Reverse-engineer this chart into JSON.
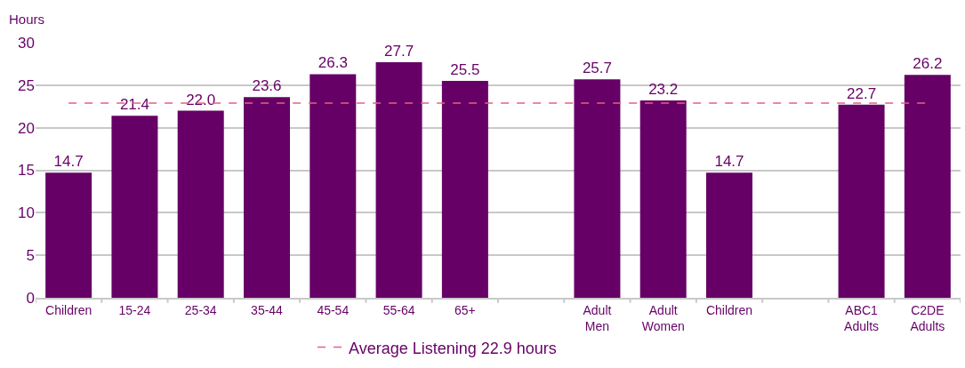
{
  "chart_data": {
    "type": "bar",
    "ylabel": "Hours",
    "categories": [
      "Children",
      "15-24",
      "25-34",
      "35-44",
      "45-54",
      "55-64",
      "65+",
      null,
      "Adult Men",
      "Adult Women",
      "Children",
      null,
      "ABC1 Adults",
      "C2DE Adults"
    ],
    "values": [
      14.7,
      21.4,
      22.0,
      23.6,
      26.3,
      27.7,
      25.5,
      null,
      25.7,
      23.2,
      14.7,
      null,
      22.7,
      26.2
    ],
    "value_labels": [
      "14.7",
      "21.4",
      "22.0",
      "23.6",
      "26.3",
      "27.7",
      "25.5",
      null,
      "25.7",
      "23.2",
      "14.7",
      null,
      "22.7",
      "26.2"
    ],
    "color": "#660066",
    "ylim": [
      0,
      30
    ],
    "yticks": [
      0,
      5,
      10,
      15,
      20,
      25,
      30
    ],
    "grid": "y",
    "legend": "bottom",
    "ref_lines": [
      {
        "axis": "y",
        "value": 22.9,
        "label": "Average Listening 22.9 hours",
        "color": "#e8607f",
        "line_style": "dashed"
      }
    ]
  }
}
